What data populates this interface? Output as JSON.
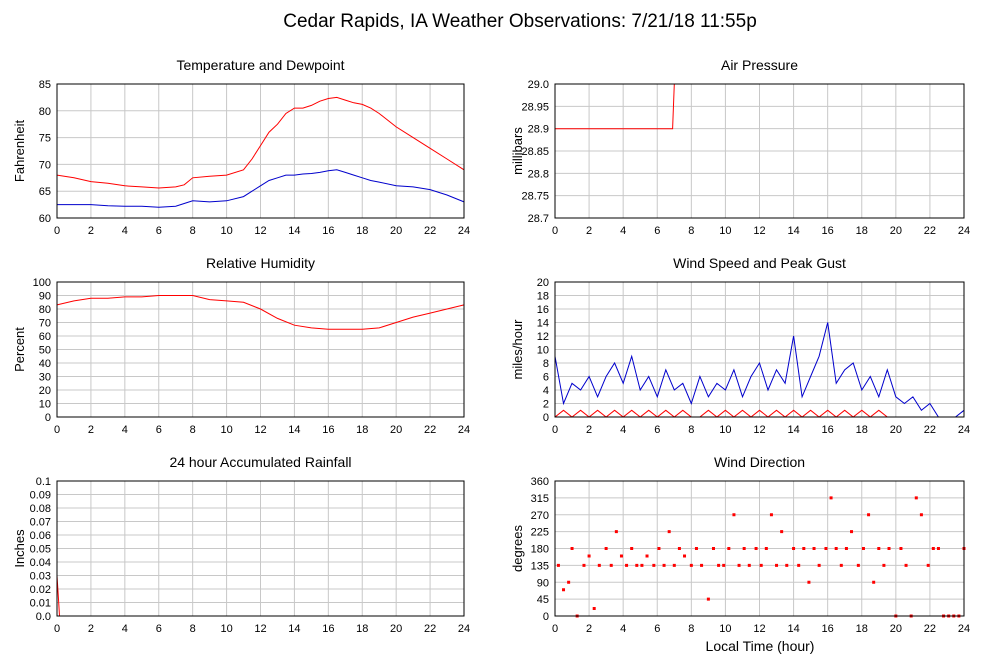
{
  "page_title": "Cedar Rapids, IA Weather Observations: 7/21/18 11:55p",
  "x_axis_label": "Local Time (hour)",
  "colors": {
    "red": "#ff0000",
    "blue": "#0000cc",
    "grid": "#c8c8c8",
    "frame": "#000000"
  },
  "chart_data": [
    {
      "id": "temp",
      "type": "line",
      "title": "Temperature and Dewpoint",
      "ylabel": "Fahrenheit",
      "xlim": [
        0,
        24
      ],
      "ylim": [
        60,
        85
      ],
      "xticks": [
        "0",
        "2",
        "4",
        "6",
        "8",
        "10",
        "12",
        "14",
        "16",
        "18",
        "20",
        "22",
        "24"
      ],
      "yticks": [
        "60",
        "65",
        "70",
        "75",
        "80",
        "85"
      ],
      "grid": true,
      "x": [
        0,
        1,
        2,
        3,
        4,
        5,
        6,
        7,
        7.5,
        8,
        9,
        10,
        11,
        11.5,
        12,
        12.5,
        13,
        13.5,
        14,
        14.5,
        15,
        15.5,
        16,
        16.5,
        17,
        17.5,
        18,
        18.5,
        19,
        20,
        21,
        22,
        23,
        24
      ],
      "series": [
        {
          "color": "red",
          "values": [
            68.0,
            67.5,
            66.8,
            66.5,
            66.0,
            65.8,
            65.6,
            65.8,
            66.2,
            67.5,
            67.8,
            68.0,
            69.0,
            71.0,
            73.5,
            76.0,
            77.5,
            79.5,
            80.5,
            80.5,
            81.0,
            81.8,
            82.3,
            82.5,
            82.0,
            81.5,
            81.2,
            80.5,
            79.5,
            77.0,
            75.0,
            73.0,
            71.0,
            69.0
          ]
        },
        {
          "color": "blue",
          "values": [
            62.5,
            62.5,
            62.5,
            62.3,
            62.2,
            62.2,
            62.0,
            62.2,
            62.7,
            63.2,
            63.0,
            63.2,
            64.0,
            65.0,
            66.0,
            67.0,
            67.5,
            68.0,
            68.0,
            68.2,
            68.3,
            68.5,
            68.8,
            69.0,
            68.5,
            68.0,
            67.5,
            67.0,
            66.7,
            66.0,
            65.8,
            65.3,
            64.3,
            63.0
          ]
        }
      ]
    },
    {
      "id": "pressure",
      "type": "line",
      "title": "Air Pressure",
      "ylabel": "millibars",
      "xlim": [
        0,
        24
      ],
      "ylim": [
        28.7,
        29.0
      ],
      "xticks": [
        "0",
        "2",
        "4",
        "6",
        "8",
        "10",
        "12",
        "14",
        "16",
        "18",
        "20",
        "22",
        "24"
      ],
      "yticks": [
        "28.7",
        "28.75",
        "28.8",
        "28.85",
        "28.9",
        "28.95",
        "29.0"
      ],
      "grid": true,
      "x": [
        0,
        6.9,
        7.0,
        24
      ],
      "series": [
        {
          "color": "red",
          "values": [
            28.9,
            28.9,
            29.0,
            29.0
          ]
        }
      ]
    },
    {
      "id": "humidity",
      "type": "line",
      "title": "Relative Humidity",
      "ylabel": "Percent",
      "xlim": [
        0,
        24
      ],
      "ylim": [
        0,
        100
      ],
      "xticks": [
        "0",
        "2",
        "4",
        "6",
        "8",
        "10",
        "12",
        "14",
        "16",
        "18",
        "20",
        "22",
        "24"
      ],
      "yticks": [
        "0",
        "10",
        "20",
        "30",
        "40",
        "50",
        "60",
        "70",
        "80",
        "90",
        "100"
      ],
      "grid": true,
      "x": [
        0,
        1,
        2,
        3,
        4,
        5,
        6,
        7,
        8,
        9,
        10,
        11,
        12,
        13,
        14,
        15,
        16,
        17,
        18,
        19,
        20,
        21,
        22,
        23,
        24
      ],
      "series": [
        {
          "color": "red",
          "values": [
            83,
            86,
            88,
            88,
            89,
            89,
            90,
            90,
            90,
            87,
            86,
            85,
            80,
            73,
            68,
            66,
            65,
            65,
            65,
            66,
            70,
            74,
            77,
            80,
            83
          ]
        }
      ]
    },
    {
      "id": "wind_speed",
      "type": "line",
      "title": "Wind Speed and Peak Gust",
      "ylabel": "miles/hour",
      "xlim": [
        0,
        24
      ],
      "ylim": [
        0,
        20
      ],
      "xticks": [
        "0",
        "2",
        "4",
        "6",
        "8",
        "10",
        "12",
        "14",
        "16",
        "18",
        "20",
        "22",
        "24"
      ],
      "yticks": [
        "0",
        "2",
        "4",
        "6",
        "8",
        "10",
        "12",
        "14",
        "16",
        "18",
        "20"
      ],
      "grid": true,
      "x": [
        0,
        0.5,
        1,
        1.5,
        2,
        2.5,
        3,
        3.5,
        4,
        4.5,
        5,
        5.5,
        6,
        6.5,
        7,
        7.5,
        8,
        8.5,
        9,
        9.5,
        10,
        10.5,
        11,
        11.5,
        12,
        12.5,
        13,
        13.5,
        14,
        14.5,
        15,
        15.5,
        16,
        16.5,
        17,
        17.5,
        18,
        18.5,
        19,
        19.5,
        20,
        20.5,
        21,
        21.5,
        22,
        22.5,
        23,
        23.5,
        24
      ],
      "series": [
        {
          "color": "blue",
          "values": [
            9,
            2,
            5,
            4,
            6,
            3,
            6,
            8,
            5,
            9,
            4,
            6,
            3,
            7,
            4,
            5,
            2,
            6,
            3,
            5,
            4,
            7,
            3,
            6,
            8,
            4,
            7,
            5,
            12,
            3,
            6,
            9,
            14,
            5,
            7,
            8,
            4,
            6,
            3,
            7,
            3,
            2,
            3,
            1,
            2,
            0,
            0,
            0,
            1
          ]
        },
        {
          "color": "red",
          "values": [
            0,
            1,
            0,
            1,
            0,
            1,
            0,
            1,
            0,
            1,
            0,
            1,
            0,
            1,
            0,
            1,
            0,
            0,
            1,
            0,
            1,
            0,
            1,
            0,
            1,
            0,
            1,
            0,
            1,
            0,
            1,
            0,
            1,
            0,
            1,
            0,
            1,
            0,
            1,
            0,
            0,
            0,
            0,
            0,
            0,
            0,
            0,
            0,
            0
          ]
        }
      ]
    },
    {
      "id": "rainfall",
      "type": "line",
      "title": "24 hour Accumulated Rainfall",
      "ylabel": "Inches",
      "xlim": [
        0,
        24
      ],
      "ylim": [
        0,
        0.1
      ],
      "xticks": [
        "0",
        "2",
        "4",
        "6",
        "8",
        "10",
        "12",
        "14",
        "16",
        "18",
        "20",
        "22",
        "24"
      ],
      "yticks": [
        "0.0",
        "0.01",
        "0.02",
        "0.03",
        "0.04",
        "0.05",
        "0.06",
        "0.07",
        "0.08",
        "0.09",
        "0.1"
      ],
      "grid": true,
      "x": [
        0,
        0.1,
        0.15,
        24
      ],
      "series": [
        {
          "color": "red",
          "values": [
            0.03,
            0.01,
            0.0,
            0.0
          ]
        }
      ]
    },
    {
      "id": "wind_dir",
      "type": "scatter",
      "title": "Wind Direction",
      "ylabel": "degrees",
      "xlim": [
        0,
        24
      ],
      "ylim": [
        0,
        360
      ],
      "xticks": [
        "0",
        "2",
        "4",
        "6",
        "8",
        "10",
        "12",
        "14",
        "16",
        "18",
        "20",
        "22",
        "24"
      ],
      "yticks": [
        "0",
        "45",
        "90",
        "135",
        "180",
        "225",
        "270",
        "315",
        "360"
      ],
      "grid": true,
      "x": [
        0.2,
        0.5,
        0.8,
        1.0,
        1.3,
        1.7,
        2.0,
        2.3,
        2.6,
        3.0,
        3.3,
        3.6,
        3.9,
        4.2,
        4.5,
        4.8,
        5.1,
        5.4,
        5.8,
        6.1,
        6.4,
        6.7,
        7.0,
        7.3,
        7.6,
        8.0,
        8.3,
        8.6,
        9.0,
        9.3,
        9.6,
        9.9,
        10.2,
        10.5,
        10.8,
        11.1,
        11.4,
        11.8,
        12.1,
        12.4,
        12.7,
        13.0,
        13.3,
        13.6,
        14.0,
        14.3,
        14.6,
        14.9,
        15.2,
        15.5,
        15.9,
        16.2,
        16.5,
        16.8,
        17.1,
        17.4,
        17.8,
        18.1,
        18.4,
        18.7,
        19.0,
        19.3,
        19.6,
        20.0,
        20.3,
        20.6,
        20.9,
        21.2,
        21.5,
        21.9,
        22.2,
        22.5,
        22.8,
        23.1,
        23.4,
        23.7,
        24.0
      ],
      "values": [
        135,
        70,
        90,
        180,
        0,
        135,
        160,
        20,
        135,
        180,
        135,
        225,
        160,
        135,
        180,
        135,
        135,
        160,
        135,
        180,
        135,
        225,
        135,
        180,
        160,
        135,
        180,
        135,
        45,
        180,
        135,
        135,
        180,
        270,
        135,
        180,
        135,
        180,
        135,
        180,
        270,
        135,
        225,
        135,
        180,
        135,
        180,
        90,
        180,
        135,
        180,
        315,
        180,
        135,
        180,
        225,
        135,
        180,
        270,
        90,
        180,
        135,
        180,
        0,
        180,
        135,
        0,
        315,
        270,
        135,
        180,
        180,
        0,
        0,
        0,
        0,
        180
      ]
    }
  ]
}
